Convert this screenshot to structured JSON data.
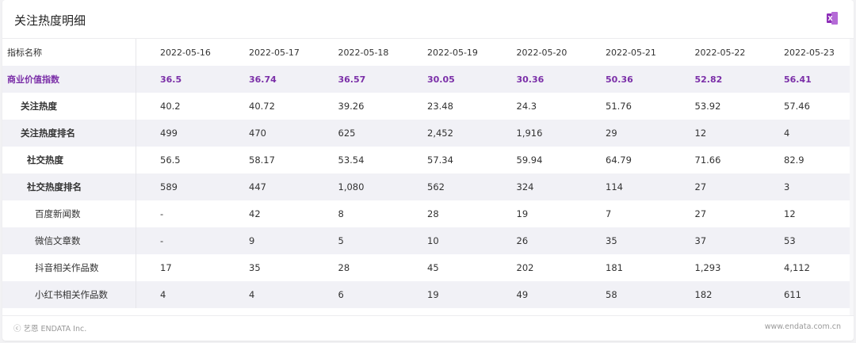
{
  "panel": {
    "title": "关注热度明细",
    "export_icon": "excel-export-icon"
  },
  "table": {
    "header_label": "指标名称",
    "dates": [
      "2022-05-16",
      "2022-05-17",
      "2022-05-18",
      "2022-05-19",
      "2022-05-20",
      "2022-05-21",
      "2022-05-22",
      "2022-05-23"
    ],
    "rows": [
      {
        "label": "商业价值指数",
        "level": 0,
        "values": [
          "36.5",
          "36.74",
          "36.57",
          "30.05",
          "30.36",
          "50.36",
          "52.82",
          "56.41"
        ]
      },
      {
        "label": "关注热度",
        "level": 1,
        "values": [
          "40.2",
          "40.72",
          "39.26",
          "23.48",
          "24.3",
          "51.76",
          "53.92",
          "57.46"
        ]
      },
      {
        "label": "关注热度排名",
        "level": 1,
        "values": [
          "499",
          "470",
          "625",
          "2,452",
          "1,916",
          "29",
          "12",
          "4"
        ]
      },
      {
        "label": "社交热度",
        "level": 2,
        "values": [
          "56.5",
          "58.17",
          "53.54",
          "57.34",
          "59.94",
          "64.79",
          "71.66",
          "82.9"
        ]
      },
      {
        "label": "社交热度排名",
        "level": 2,
        "values": [
          "589",
          "447",
          "1,080",
          "562",
          "324",
          "114",
          "27",
          "3"
        ]
      },
      {
        "label": "百度新闻数",
        "level": 3,
        "values": [
          "-",
          "42",
          "8",
          "28",
          "19",
          "7",
          "27",
          "12"
        ]
      },
      {
        "label": "微信文章数",
        "level": 3,
        "values": [
          "-",
          "9",
          "5",
          "10",
          "26",
          "35",
          "37",
          "53"
        ]
      },
      {
        "label": "抖音相关作品数",
        "level": 3,
        "values": [
          "17",
          "35",
          "28",
          "45",
          "202",
          "181",
          "1,293",
          "4,112"
        ]
      },
      {
        "label": "小红书相关作品数",
        "level": 3,
        "values": [
          "4",
          "4",
          "6",
          "19",
          "49",
          "58",
          "182",
          "611"
        ]
      }
    ]
  },
  "footer": {
    "copyright": "ⓒ 艺恩 ENDATA Inc.",
    "website": "www.endata.com.cn"
  },
  "colors": {
    "accent_purple": "#7b2fa8",
    "row_shade": "#f1f1f6"
  }
}
